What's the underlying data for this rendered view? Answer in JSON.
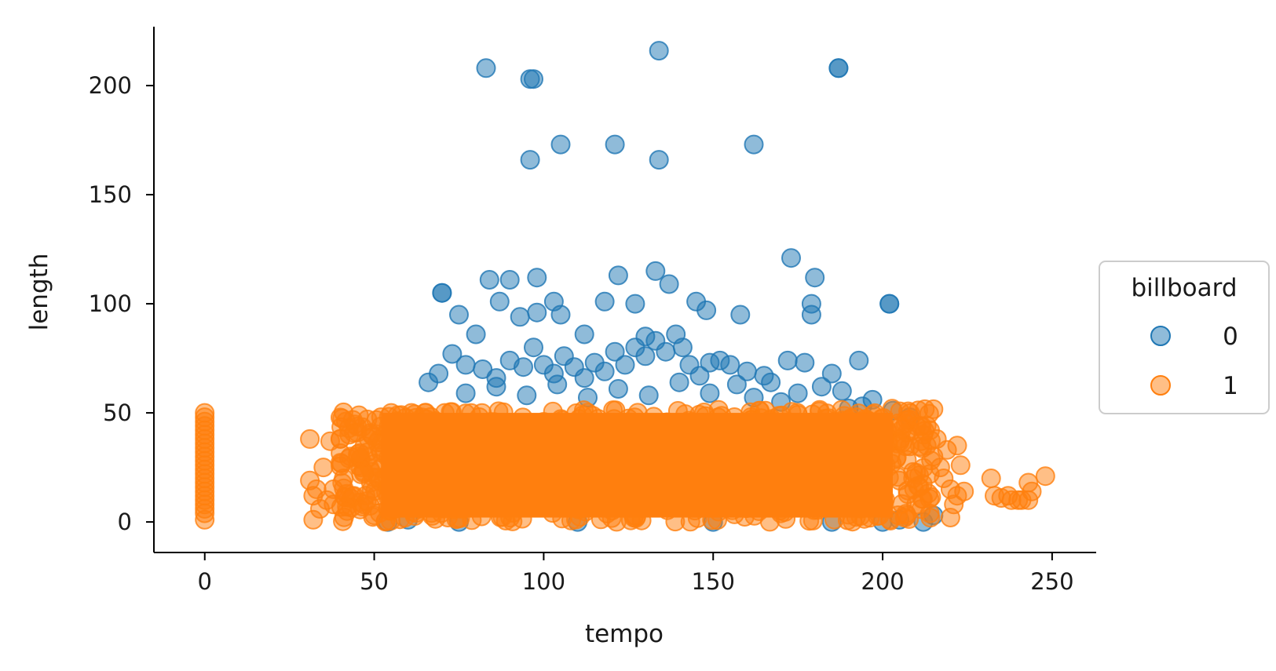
{
  "chart_data": {
    "type": "scatter",
    "title": "",
    "xlabel": "tempo",
    "ylabel": "length",
    "xlim": [
      -15,
      263
    ],
    "ylim": [
      -14,
      227
    ],
    "xticks": [
      0,
      50,
      100,
      150,
      200,
      250
    ],
    "yticks": [
      0,
      50,
      100,
      150,
      200
    ],
    "grid": false,
    "legend": {
      "title": "billboard",
      "placement": "center-right outside"
    },
    "series": [
      {
        "name": "0",
        "color": "#1f77b4",
        "points": [
          [
            83,
            208
          ],
          [
            96,
            203
          ],
          [
            97,
            203
          ],
          [
            134,
            216
          ],
          [
            187,
            208
          ],
          [
            187,
            208
          ],
          [
            96,
            166
          ],
          [
            105,
            173
          ],
          [
            121,
            173
          ],
          [
            134,
            166
          ],
          [
            162,
            173
          ],
          [
            84,
            111
          ],
          [
            90,
            111
          ],
          [
            98,
            112
          ],
          [
            122,
            113
          ],
          [
            133,
            115
          ],
          [
            137,
            109
          ],
          [
            173,
            121
          ],
          [
            180,
            112
          ],
          [
            202,
            100
          ],
          [
            202,
            100
          ],
          [
            179,
            100
          ],
          [
            179,
            95
          ],
          [
            158,
            95
          ],
          [
            75,
            95
          ],
          [
            70,
            105
          ],
          [
            70,
            105
          ],
          [
            80,
            86
          ],
          [
            87,
            101
          ],
          [
            93,
            94
          ],
          [
            98,
            96
          ],
          [
            103,
            101
          ],
          [
            105,
            95
          ],
          [
            112,
            86
          ],
          [
            118,
            101
          ],
          [
            127,
            100
          ],
          [
            130,
            85
          ],
          [
            145,
            101
          ],
          [
            148,
            97
          ],
          [
            152,
            74
          ],
          [
            155,
            72
          ],
          [
            160,
            69
          ],
          [
            165,
            67
          ],
          [
            172,
            74
          ],
          [
            177,
            73
          ],
          [
            185,
            68
          ],
          [
            193,
            74
          ],
          [
            182,
            62
          ],
          [
            175,
            59
          ],
          [
            167,
            64
          ],
          [
            194,
            53
          ],
          [
            203,
            51
          ],
          [
            66,
            64
          ],
          [
            69,
            68
          ],
          [
            73,
            77
          ],
          [
            77,
            72
          ],
          [
            82,
            70
          ],
          [
            86,
            66
          ],
          [
            90,
            74
          ],
          [
            94,
            71
          ],
          [
            97,
            80
          ],
          [
            100,
            72
          ],
          [
            103,
            68
          ],
          [
            106,
            76
          ],
          [
            109,
            71
          ],
          [
            112,
            66
          ],
          [
            115,
            73
          ],
          [
            118,
            69
          ],
          [
            121,
            78
          ],
          [
            124,
            72
          ],
          [
            127,
            80
          ],
          [
            130,
            76
          ],
          [
            133,
            83
          ],
          [
            136,
            78
          ],
          [
            139,
            86
          ],
          [
            141,
            80
          ],
          [
            143,
            72
          ],
          [
            146,
            67
          ],
          [
            149,
            73
          ],
          [
            77,
            59
          ],
          [
            86,
            62
          ],
          [
            95,
            58
          ],
          [
            104,
            63
          ],
          [
            113,
            57
          ],
          [
            122,
            61
          ],
          [
            131,
            58
          ],
          [
            140,
            64
          ],
          [
            149,
            59
          ],
          [
            157,
            63
          ],
          [
            162,
            57
          ],
          [
            170,
            55
          ],
          [
            188,
            60
          ],
          [
            197,
            56
          ],
          [
            54,
            0
          ],
          [
            60,
            1
          ],
          [
            75,
            0
          ],
          [
            110,
            0
          ],
          [
            150,
            0
          ],
          [
            185,
            0
          ],
          [
            200,
            0
          ],
          [
            205,
            1
          ],
          [
            212,
            0
          ],
          [
            215,
            3
          ],
          [
            208,
            48
          ],
          [
            190,
            52
          ]
        ]
      },
      {
        "name": "1",
        "color": "#ff7f0e",
        "points": [
          [
            0,
            50
          ],
          [
            0,
            48
          ],
          [
            0,
            46
          ],
          [
            0,
            44
          ],
          [
            0,
            42
          ],
          [
            0,
            40
          ],
          [
            0,
            38
          ],
          [
            0,
            36
          ],
          [
            0,
            34
          ],
          [
            0,
            32
          ],
          [
            0,
            30
          ],
          [
            0,
            28
          ],
          [
            0,
            26
          ],
          [
            0,
            24
          ],
          [
            0,
            22
          ],
          [
            0,
            20
          ],
          [
            0,
            18
          ],
          [
            0,
            16
          ],
          [
            0,
            14
          ],
          [
            0,
            12
          ],
          [
            0,
            10
          ],
          [
            0,
            8
          ],
          [
            0,
            6
          ],
          [
            0,
            4
          ],
          [
            0,
            1
          ],
          [
            31,
            38
          ],
          [
            31,
            19
          ],
          [
            32,
            12
          ],
          [
            32,
            1
          ],
          [
            33,
            15
          ],
          [
            34,
            6
          ],
          [
            35,
            25
          ],
          [
            36,
            10
          ],
          [
            37,
            37
          ],
          [
            38,
            15
          ],
          [
            38,
            8
          ],
          [
            40,
            38
          ],
          [
            41,
            20
          ],
          [
            42,
            5
          ],
          [
            43,
            30
          ],
          [
            44,
            12
          ],
          [
            45,
            41
          ],
          [
            46,
            25
          ],
          [
            47,
            8
          ],
          [
            48,
            47
          ],
          [
            49,
            18
          ],
          [
            50,
            3
          ],
          [
            52,
            48
          ],
          [
            55,
            50
          ],
          [
            58,
            49
          ],
          [
            61,
            50
          ],
          [
            65,
            50
          ],
          [
            210,
            44
          ],
          [
            212,
            40
          ],
          [
            213,
            35
          ],
          [
            214,
            42
          ],
          [
            215,
            30
          ],
          [
            216,
            38
          ],
          [
            217,
            25
          ],
          [
            218,
            20
          ],
          [
            219,
            33
          ],
          [
            220,
            15
          ],
          [
            221,
            8
          ],
          [
            222,
            12
          ],
          [
            222,
            35
          ],
          [
            223,
            26
          ],
          [
            224,
            14
          ],
          [
            220,
            2
          ],
          [
            232,
            20
          ],
          [
            233,
            12
          ],
          [
            235,
            11
          ],
          [
            237,
            12
          ],
          [
            238,
            10
          ],
          [
            240,
            10
          ],
          [
            241,
            10
          ],
          [
            243,
            10
          ],
          [
            243,
            18
          ],
          [
            244,
            14
          ],
          [
            248,
            21
          ]
        ]
      }
    ],
    "dense_region": {
      "series": "1",
      "x_range": [
        40,
        215
      ],
      "y_range": [
        0,
        52
      ]
    }
  }
}
